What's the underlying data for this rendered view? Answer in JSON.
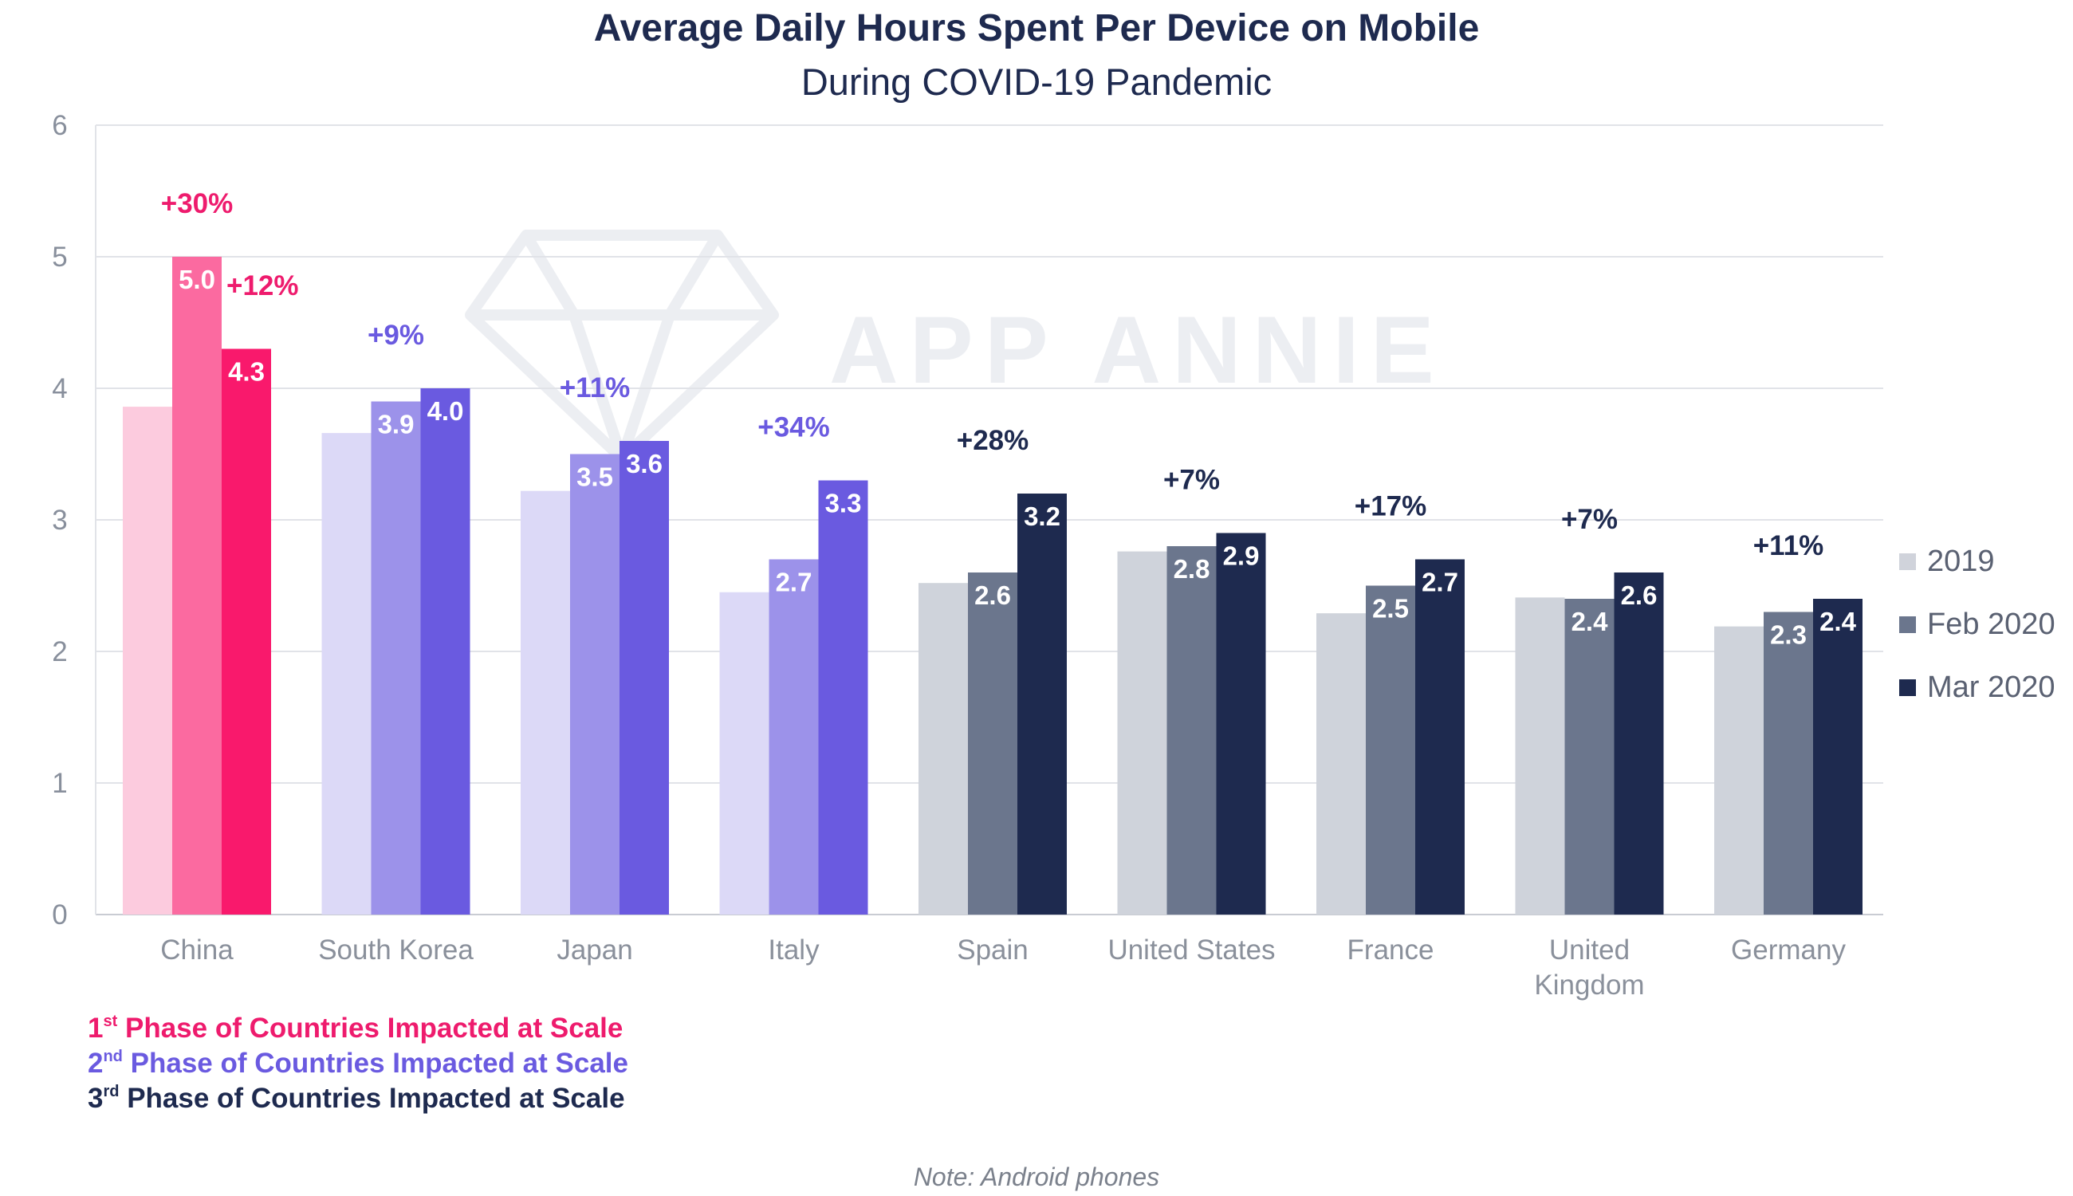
{
  "title": "Average Daily Hours Spent Per Device on Mobile",
  "subtitle": "During COVID-19 Pandemic",
  "watermark_text": "APP ANNIE",
  "note": "Note: Android phones",
  "legend": [
    {
      "label": "2019",
      "color": "#d0d3db"
    },
    {
      "label": "Feb 2020",
      "color": "#6b768d"
    },
    {
      "label": "Mar 2020",
      "color": "#1e2a4f"
    }
  ],
  "phases": [
    {
      "ord": "1",
      "sup": "st",
      "text": " Phase of Countries Impacted at Scale",
      "color": "#ee1b6d"
    },
    {
      "ord": "2",
      "sup": "nd",
      "text": " Phase of Countries Impacted at Scale",
      "color": "#6a5ae0"
    },
    {
      "ord": "3",
      "sup": "rd",
      "text": " Phase of Countries Impacted at Scale",
      "color": "#1e2a4f"
    }
  ],
  "chart_data": {
    "type": "bar",
    "ylim": [
      0,
      6
    ],
    "yticks": [
      0,
      1,
      2,
      3,
      4,
      5,
      6
    ],
    "grid": true,
    "legend_position": "right",
    "categories": [
      "China",
      "South Korea",
      "Japan",
      "Italy",
      "Spain",
      "United States",
      "France",
      "United Kingdom",
      "Germany"
    ],
    "category_lines": [
      [
        "China"
      ],
      [
        "South Korea"
      ],
      [
        "Japan"
      ],
      [
        "Italy"
      ],
      [
        "Spain"
      ],
      [
        "United States"
      ],
      [
        "France"
      ],
      [
        "United",
        "Kingdom"
      ],
      [
        "Germany"
      ]
    ],
    "series": [
      {
        "name": "2019",
        "values": [
          3.86,
          3.66,
          3.22,
          2.45,
          2.52,
          2.76,
          2.29,
          2.41,
          2.19
        ]
      },
      {
        "name": "Feb 2020",
        "values": [
          5.0,
          3.9,
          3.5,
          2.7,
          2.6,
          2.8,
          2.5,
          2.4,
          2.3
        ]
      },
      {
        "name": "Mar 2020",
        "values": [
          4.3,
          4.0,
          3.6,
          3.3,
          3.2,
          2.9,
          2.7,
          2.6,
          2.4
        ]
      }
    ],
    "data_labels": {
      "Feb 2020": [
        "5.0",
        "3.9",
        "3.5",
        "2.7",
        "2.6",
        "2.8",
        "2.5",
        "2.4",
        "2.3"
      ],
      "Mar 2020": [
        "4.3",
        "4.0",
        "3.6",
        "3.3",
        "3.2",
        "2.9",
        "2.7",
        "2.6",
        "2.4"
      ]
    },
    "growth_annotations": [
      "+30%",
      "+9%",
      "+11%",
      "+34%",
      "+28%",
      "+7%",
      "+17%",
      "+7%",
      "+11%"
    ],
    "extra_annotations": [
      {
        "category": "China",
        "text": "+12%"
      }
    ],
    "phase_of_country": [
      1,
      2,
      2,
      2,
      3,
      3,
      3,
      3,
      3
    ],
    "phase_colors": {
      "1": [
        "#fccbde",
        "#fb6aa0",
        "#f9196c"
      ],
      "2": [
        "#dcd9f7",
        "#9c92ea",
        "#6a5ae0"
      ],
      "3": [
        "#cfd3db",
        "#6b768d",
        "#1e2a4f"
      ]
    },
    "annotation_colors": {
      "1": "#ee1b6d",
      "2": "#6a5ae0",
      "3": "#1e2a4f"
    }
  }
}
